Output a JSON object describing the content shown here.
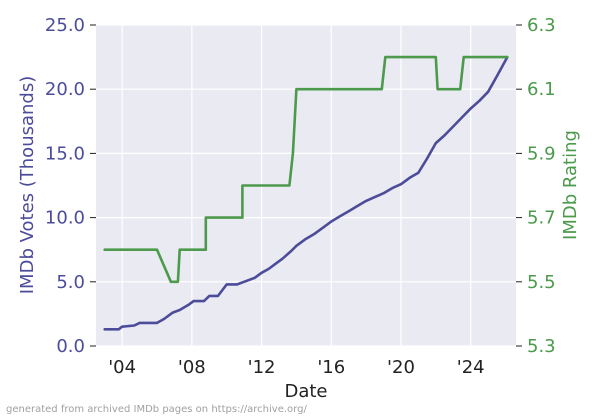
{
  "footer_text": "generated from archived IMDb pages on https://archive.org/",
  "chart_data": {
    "type": "line",
    "title": "",
    "xlabel": "Date",
    "ylabel_left": "IMDb Votes (Thousands)",
    "ylabel_right": "IMDb Rating",
    "xlim": [
      2002.5,
      2026.6
    ],
    "ylim_left": [
      0,
      25
    ],
    "ylim_right": [
      5.3,
      6.3
    ],
    "x_ticks": [
      {
        "value": 2004,
        "label": "'04"
      },
      {
        "value": 2008,
        "label": "'08"
      },
      {
        "value": 2012,
        "label": "'12"
      },
      {
        "value": 2016,
        "label": "'16"
      },
      {
        "value": 2020,
        "label": "'20"
      },
      {
        "value": 2024,
        "label": "'24"
      }
    ],
    "y_left_ticks": [
      {
        "value": 0,
        "label": "0.0"
      },
      {
        "value": 5,
        "label": "5.0"
      },
      {
        "value": 10,
        "label": "10.0"
      },
      {
        "value": 15,
        "label": "15.0"
      },
      {
        "value": 20,
        "label": "20.0"
      },
      {
        "value": 25,
        "label": "25.0"
      }
    ],
    "y_right_ticks": [
      {
        "value": 5.3,
        "label": "5.3"
      },
      {
        "value": 5.5,
        "label": "5.5"
      },
      {
        "value": 5.7,
        "label": "5.7"
      },
      {
        "value": 5.9,
        "label": "5.9"
      },
      {
        "value": 6.1,
        "label": "6.1"
      },
      {
        "value": 6.3,
        "label": "6.3"
      }
    ],
    "grid": true,
    "legend": "none",
    "colors": {
      "background": "#eaeaf2",
      "grid": "#ffffff",
      "votes": "#4c4c9a",
      "rating": "#4c9a4c",
      "axis_text": "#222222"
    },
    "series": [
      {
        "axis": "left",
        "x": [
          2003.0,
          2003.8,
          2004.0,
          2004.7,
          2005.0,
          2005.3,
          2006.0,
          2006.4,
          2006.9,
          2007.3,
          2007.8,
          2008.1,
          2008.7,
          2009.0,
          2009.5,
          2010.0,
          2010.6,
          2011.0,
          2011.6,
          2012.0,
          2012.4,
          2012.8,
          2013.2,
          2013.7,
          2014.0,
          2014.5,
          2015.0,
          2015.5,
          2016.0,
          2016.5,
          2017.0,
          2017.5,
          2018.0,
          2018.5,
          2019.0,
          2019.5,
          2020.0,
          2020.5,
          2021.0,
          2021.5,
          2022.0,
          2022.5,
          2023.0,
          2023.5,
          2024.0,
          2024.5,
          2025.0,
          2025.5,
          2026.1
        ],
        "values": [
          1.3,
          1.3,
          1.5,
          1.6,
          1.8,
          1.8,
          1.8,
          2.1,
          2.6,
          2.8,
          3.2,
          3.5,
          3.5,
          3.9,
          3.9,
          4.8,
          4.8,
          5.0,
          5.3,
          5.7,
          6.0,
          6.4,
          6.8,
          7.4,
          7.8,
          8.3,
          8.7,
          9.2,
          9.7,
          10.1,
          10.5,
          10.9,
          11.3,
          11.6,
          11.9,
          12.3,
          12.6,
          13.1,
          13.5,
          14.6,
          15.8,
          16.4,
          17.1,
          17.8,
          18.5,
          19.1,
          19.8,
          21.0,
          22.5
        ]
      },
      {
        "axis": "right",
        "x": [
          2003.0,
          2006.0,
          2006.8,
          2007.2,
          2007.3,
          2008.8,
          2008.8,
          2010.9,
          2010.9,
          2013.6,
          2013.8,
          2014.0,
          2018.9,
          2019.1,
          2022.0,
          2022.1,
          2023.4,
          2023.6,
          2026.1
        ],
        "values": [
          5.6,
          5.6,
          5.5,
          5.5,
          5.6,
          5.6,
          5.7,
          5.7,
          5.8,
          5.8,
          5.9,
          6.1,
          6.1,
          6.2,
          6.2,
          6.1,
          6.1,
          6.2,
          6.2
        ]
      }
    ]
  }
}
